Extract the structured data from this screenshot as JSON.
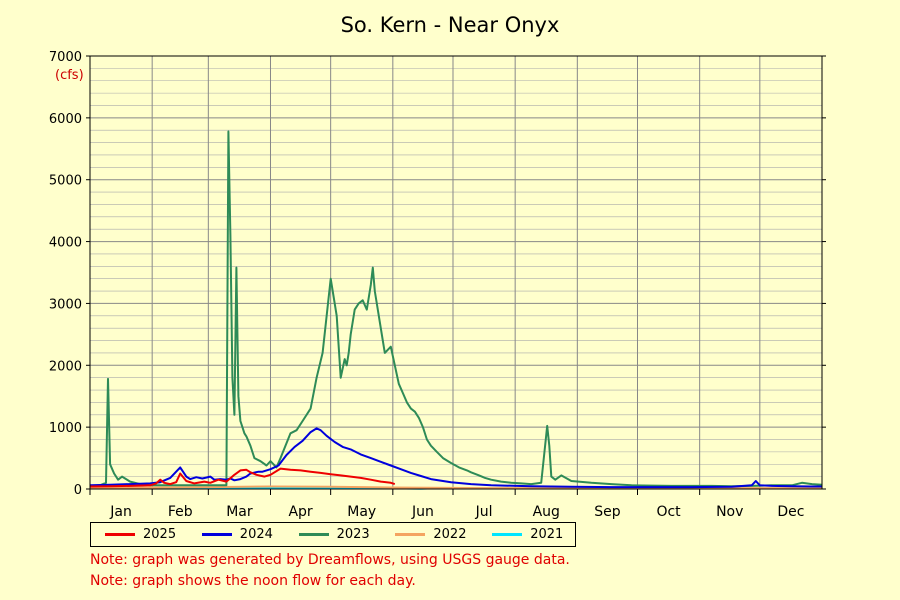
{
  "title": "So. Kern - Near Onyx",
  "units": "(cfs)",
  "notes": [
    "Note: graph was generated by Dreamflows, using USGS gauge data.",
    "Note: graph shows the noon flow for each day."
  ],
  "chart_data": {
    "type": "line",
    "title": "So. Kern - Near Onyx",
    "ylabel": "(cfs)",
    "ylim": [
      0,
      7000
    ],
    "xlim": [
      0,
      365
    ],
    "y_ticks": [
      0,
      1000,
      2000,
      3000,
      4000,
      5000,
      6000,
      7000
    ],
    "x_month_labels": [
      "Jan",
      "Feb",
      "Mar",
      "Apr",
      "May",
      "Jun",
      "Jul",
      "Aug",
      "Sep",
      "Oct",
      "Nov",
      "Dec"
    ],
    "grid": true,
    "legend_position": "bottom",
    "series": [
      {
        "name": "2025",
        "color": "#ee0000",
        "x": [
          0,
          10,
          20,
          30,
          33,
          35,
          37,
          40,
          43,
          45,
          48,
          52,
          57,
          60,
          64,
          68,
          72,
          75,
          78,
          80,
          83,
          87,
          90,
          95,
          100,
          105,
          110,
          115,
          120,
          125,
          130,
          135,
          140,
          145,
          150,
          152
        ],
        "y": [
          40,
          45,
          50,
          60,
          90,
          150,
          100,
          80,
          110,
          250,
          130,
          90,
          120,
          100,
          150,
          120,
          230,
          300,
          310,
          270,
          230,
          200,
          230,
          330,
          310,
          300,
          280,
          260,
          240,
          220,
          200,
          180,
          150,
          120,
          100,
          80
        ]
      },
      {
        "name": "2024",
        "color": "#0000dd",
        "x": [
          0,
          10,
          20,
          30,
          35,
          40,
          45,
          48,
          50,
          53,
          56,
          60,
          62,
          65,
          68,
          70,
          72,
          75,
          78,
          80,
          84,
          86,
          90,
          94,
          98,
          102,
          106,
          110,
          113,
          115,
          118,
          122,
          126,
          130,
          135,
          140,
          145,
          150,
          155,
          160,
          165,
          170,
          180,
          190,
          200,
          220,
          240,
          260,
          280,
          300,
          320,
          330,
          332,
          334,
          340,
          350,
          360,
          365
        ],
        "y": [
          60,
          70,
          80,
          90,
          110,
          180,
          350,
          200,
          160,
          190,
          170,
          200,
          150,
          160,
          150,
          170,
          140,
          160,
          200,
          250,
          280,
          280,
          320,
          380,
          550,
          680,
          780,
          920,
          980,
          950,
          860,
          760,
          680,
          640,
          560,
          500,
          440,
          380,
          320,
          260,
          210,
          160,
          110,
          80,
          60,
          45,
          35,
          30,
          30,
          30,
          35,
          60,
          130,
          60,
          50,
          45,
          40,
          40
        ]
      },
      {
        "name": "2023",
        "color": "#2e8b57",
        "x": [
          0,
          5,
          8,
          9,
          10,
          12,
          14,
          16,
          20,
          25,
          30,
          35,
          40,
          45,
          50,
          55,
          60,
          65,
          68,
          69,
          70,
          71,
          72,
          73,
          74,
          75,
          76,
          77,
          78,
          80,
          82,
          85,
          88,
          90,
          93,
          95,
          100,
          103,
          106,
          110,
          113,
          116,
          120,
          123,
          125,
          127,
          128,
          129,
          130,
          132,
          134,
          136,
          138,
          140,
          141,
          142,
          145,
          147,
          150,
          152,
          154,
          156,
          158,
          160,
          162,
          164,
          166,
          168,
          170,
          173,
          176,
          180,
          184,
          188,
          190,
          194,
          197,
          200,
          205,
          210,
          215,
          220,
          225,
          228,
          229,
          230,
          232,
          235,
          240,
          250,
          260,
          270,
          280,
          290,
          300,
          310,
          320,
          330,
          340,
          350,
          355,
          360,
          365
        ],
        "y": [
          50,
          60,
          100,
          1780,
          400,
          250,
          150,
          200,
          120,
          80,
          60,
          60,
          60,
          60,
          60,
          60,
          60,
          60,
          60,
          5780,
          4100,
          1800,
          1200,
          3580,
          1500,
          1100,
          1000,
          900,
          850,
          700,
          500,
          450,
          380,
          450,
          350,
          500,
          900,
          950,
          1100,
          1300,
          1800,
          2200,
          3400,
          2800,
          1800,
          2100,
          2000,
          2200,
          2500,
          2900,
          3000,
          3050,
          2900,
          3300,
          3580,
          3200,
          2600,
          2200,
          2300,
          2000,
          1700,
          1550,
          1400,
          1300,
          1250,
          1150,
          1000,
          800,
          700,
          600,
          500,
          420,
          350,
          300,
          270,
          220,
          180,
          150,
          120,
          100,
          90,
          80,
          100,
          1020,
          700,
          200,
          150,
          220,
          130,
          100,
          80,
          60,
          55,
          50,
          50,
          50,
          45,
          50,
          60,
          60,
          100,
          80,
          70
        ]
      },
      {
        "name": "2022",
        "color": "#f4a460",
        "x": [
          0,
          30,
          60,
          90,
          120,
          150,
          170,
          200,
          250,
          300,
          365
        ],
        "y": [
          20,
          25,
          30,
          40,
          35,
          25,
          20,
          15,
          15,
          15,
          15
        ]
      },
      {
        "name": "2021",
        "color": "#00e5ff",
        "x": [
          0,
          30,
          60,
          90,
          120,
          150,
          165,
          170,
          200,
          250,
          300,
          365
        ],
        "y": [
          10,
          10,
          15,
          20,
          18,
          12,
          5,
          10,
          8,
          8,
          8,
          10
        ]
      }
    ]
  }
}
